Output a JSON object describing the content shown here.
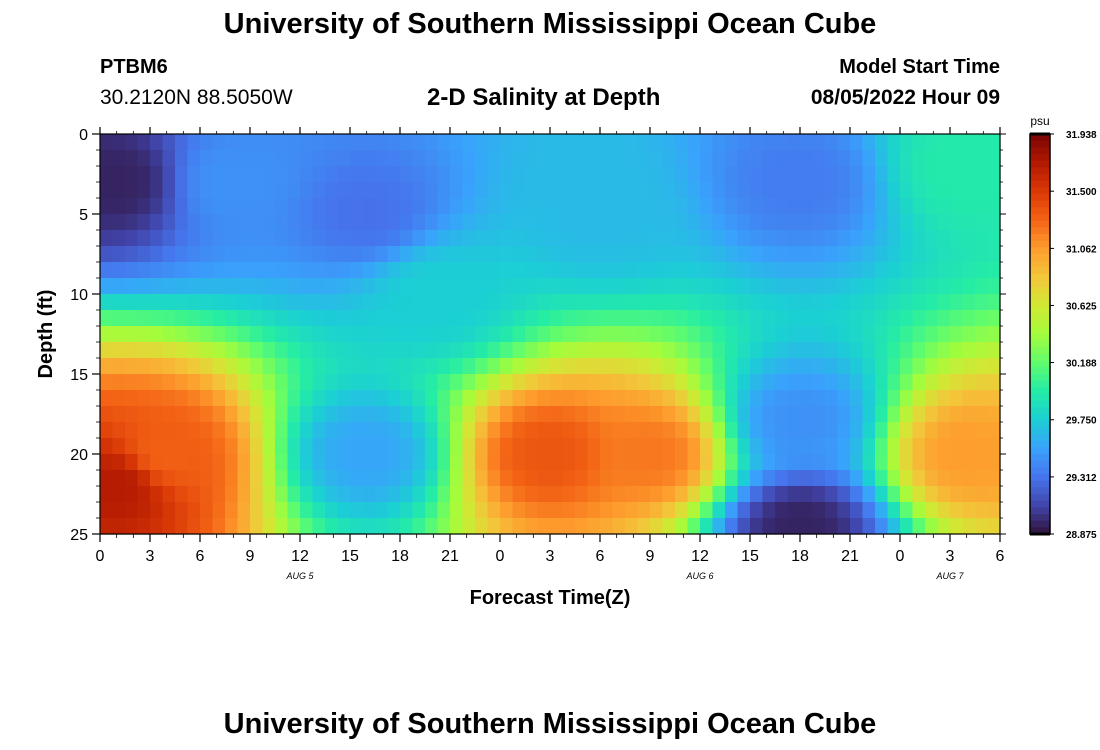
{
  "header": {
    "title": "University of Southern Mississippi Ocean Cube",
    "station_id": "PTBM6",
    "station_coords": "30.2120N  88.5050W",
    "plot_title": "2-D Salinity at Depth",
    "model_label": "Model Start Time",
    "model_time": "08/05/2022 Hour 09"
  },
  "footer": {
    "title": "University of Southern Mississippi Ocean Cube"
  },
  "chart_data": {
    "type": "heatmap",
    "title": "2-D Salinity at Depth",
    "xlabel": "Forecast Time(Z)",
    "ylabel": "Depth (ft)",
    "x_tick_labels": [
      "0",
      "3",
      "6",
      "9",
      "12",
      "15",
      "18",
      "21",
      "0",
      "3",
      "6",
      "9",
      "12",
      "15",
      "18",
      "21",
      "0",
      "3",
      "6"
    ],
    "x_hours_since_start": [
      0,
      3,
      6,
      9,
      12,
      15,
      18,
      21,
      24,
      27,
      30,
      33,
      36,
      39,
      42,
      45,
      48,
      51,
      54
    ],
    "x_date_labels": [
      {
        "label": "AUG 5",
        "hour": 12
      },
      {
        "label": "AUG 6",
        "hour": 36
      },
      {
        "label": "AUG 7",
        "hour": 51
      }
    ],
    "xlim": [
      0,
      54
    ],
    "y_tick_labels": [
      "0",
      "5",
      "10",
      "15",
      "20",
      "25"
    ],
    "y_ticks": [
      0,
      5,
      10,
      15,
      20,
      25
    ],
    "ylim": [
      0,
      25
    ],
    "y_inverted": true,
    "colorbar": {
      "unit": "psu",
      "tick_labels": [
        "31.938",
        "31.500",
        "31.062",
        "30.625",
        "30.188",
        "29.750",
        "29.312",
        "28.875"
      ],
      "ticks": [
        31.938,
        31.5,
        31.062,
        30.625,
        30.188,
        29.75,
        29.312,
        28.875
      ],
      "range": [
        28.875,
        31.938
      ],
      "colormap": [
        "#30123b",
        "#4145ab",
        "#4675ed",
        "#39a2fc",
        "#1bcfd4",
        "#24eca6",
        "#61fc6c",
        "#a4fc3b",
        "#d1e834",
        "#f3c63a",
        "#fe9b2d",
        "#f36315",
        "#d93806",
        "#b11901",
        "#7a0403"
      ]
    },
    "grid": false,
    "sample_points": [
      {
        "hour": 1,
        "depth": 3,
        "salinity": 28.95
      },
      {
        "hour": 1,
        "depth": 22,
        "salinity": 31.7
      },
      {
        "hour": 4,
        "depth": 20,
        "salinity": 31.3
      },
      {
        "hour": 8,
        "depth": 3,
        "salinity": 29.45
      },
      {
        "hour": 16,
        "depth": 5,
        "salinity": 29.3
      },
      {
        "hour": 16,
        "depth": 20,
        "salinity": 29.55
      },
      {
        "hour": 20,
        "depth": 10,
        "salinity": 29.75
      },
      {
        "hour": 27,
        "depth": 20,
        "salinity": 31.35
      },
      {
        "hour": 30,
        "depth": 5,
        "salinity": 29.65
      },
      {
        "hour": 33,
        "depth": 20,
        "salinity": 31.2
      },
      {
        "hour": 42,
        "depth": 3,
        "salinity": 29.35
      },
      {
        "hour": 42,
        "depth": 24.5,
        "salinity": 28.95
      },
      {
        "hour": 42,
        "depth": 18,
        "salinity": 29.45
      },
      {
        "hour": 52,
        "depth": 20,
        "salinity": 31.05
      },
      {
        "hour": 52,
        "depth": 2,
        "salinity": 29.95
      }
    ]
  }
}
